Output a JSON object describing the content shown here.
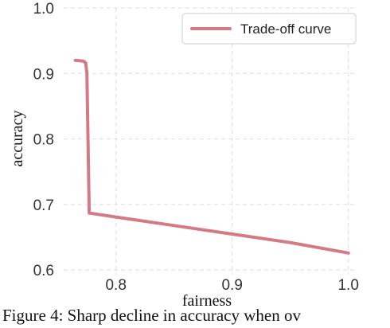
{
  "chart_data": {
    "type": "line",
    "title": "",
    "xlabel": "fairness",
    "ylabel": "accuracy",
    "xlim": [
      0.755,
      1.005
    ],
    "ylim": [
      0.593,
      1.0
    ],
    "xticks": [
      0.8,
      0.9,
      1.0
    ],
    "xtick_labels": [
      "0.8",
      "0.9",
      "1.0"
    ],
    "yticks": [
      0.6,
      0.7,
      0.8,
      0.9,
      1.0
    ],
    "ytick_labels": [
      "0.6",
      "0.7",
      "0.8",
      "0.9",
      "1.0"
    ],
    "grid": true,
    "legend_position": "top-right",
    "series": [
      {
        "name": "Trade-off curve",
        "color": "#d47a84",
        "x": [
          0.765,
          0.772,
          0.774,
          0.775,
          0.777,
          0.8,
          0.85,
          0.9,
          0.95,
          1.0
        ],
        "y": [
          0.92,
          0.919,
          0.916,
          0.9,
          0.687,
          0.681,
          0.668,
          0.655,
          0.642,
          0.626
        ]
      }
    ]
  },
  "caption": "Figure 4: Sharp decline in accuracy when ov"
}
